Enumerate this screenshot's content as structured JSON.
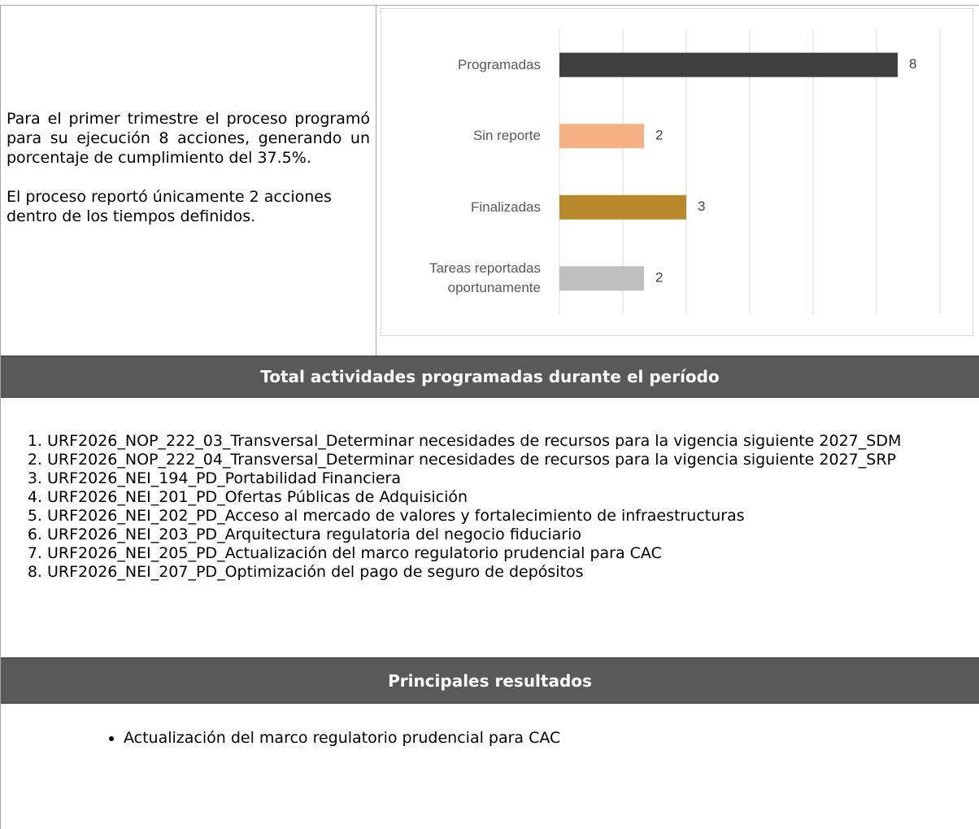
{
  "summary": {
    "paragraphs": [
      "Para el primer trimestre el proceso programó para su ejecución 8 acciones, generando un porcentaje de cumplimiento del 37.5%.",
      "El proceso reportó únicamente 2 acciones dentro de los tiempos definidos."
    ]
  },
  "chart_data": {
    "type": "bar",
    "orientation": "horizontal",
    "categories": [
      "Programadas",
      "Sin reporte",
      "Finalizadas",
      "Tareas reportadas oportunamente"
    ],
    "values": [
      8,
      2,
      3,
      2
    ],
    "colors": [
      "#404040",
      "#f4b183",
      "#b8892a",
      "#bfbfbf"
    ],
    "xlim": [
      0,
      9
    ],
    "xticks": [
      0,
      1.5,
      3,
      4.5,
      6,
      7.5,
      9
    ],
    "grid": true
  },
  "activities": {
    "title": "Total actividades programadas durante el período",
    "items": [
      "URF2026_NOP_222_03_Transversal_Determinar necesidades de recursos para la vigencia siguiente 2027_SDM",
      "URF2026_NOP_222_04_Transversal_Determinar necesidades de recursos para la vigencia siguiente 2027_SRP",
      "URF2026_NEI_194_PD_Portabilidad Financiera",
      "URF2026_NEI_201_PD_Ofertas Públicas de Adquisición",
      "URF2026_NEI_202_PD_Acceso al mercado de valores y fortalecimiento de infraestructuras",
      "URF2026_NEI_203_PD_Arquitectura regulatoria del negocio fiduciario",
      "URF2026_NEI_205_PD_Actualización del marco regulatorio prudencial para CAC",
      "URF2026_NEI_207_PD_Optimización del pago de seguro de depósitos"
    ]
  },
  "results": {
    "title": "Principales resultados",
    "items": [
      "Actualización del marco regulatorio prudencial para CAC"
    ]
  }
}
